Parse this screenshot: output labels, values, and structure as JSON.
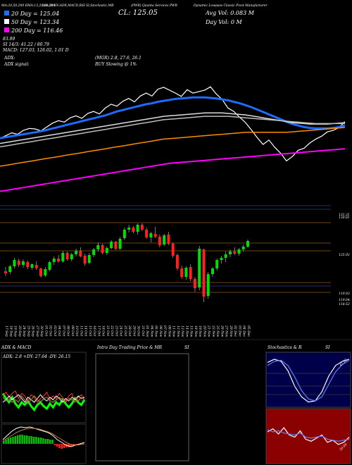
{
  "header": {
    "ma_title": "MA:20,50,200  EMA:13,20,50,200",
    "ind_title": "MA:20 HV:ADX,MACD,RSI",
    "stoch_title": "SI,Stochastic,MR",
    "symbol_title": "(PWR) Quanta Services PWR",
    "company_title": "Dynamic Lowpass Classic Pivot Manufacturer",
    "close_label": "CL: 125.05",
    "avg_vol_label": "Avg Vol: 0.083 M",
    "day_vol_label": "Day Vol: 0   M",
    "ma20_label": "20  Day = 125.04",
    "ma50_label": "50  Day = 123.34",
    "ma200_label": "200  Day = 116.46",
    "stat_lines": [
      "                     83.99",
      "                     SI 14/3: 41.22 / 80.79",
      "MACD: 127.03,  126.02,  1.01 D"
    ],
    "adx_label": "ADX:",
    "adx_mid": "(MGR) 2.8,  27.6,  26.1",
    "adx_signal_label": "ADX signal:",
    "adx_signal_value": "BUY Slowing @ 1%"
  },
  "panels": {
    "adx_macd_title": "ADX  & MACD",
    "adx_values": "ADX: 2.8  +DY: 27.64  -DY: 26.15",
    "intraday_title": "Intra  Day Trading Price  & MR",
    "intraday_si": "SI",
    "stoch_title": "Stochastics & R",
    "stoch_si": "SI",
    "stoch_values": "41.22",
    "mr_value": "20.00"
  },
  "chart_data": [
    {
      "type": "line",
      "name": "moving-averages",
      "x_days": 60,
      "series": [
        {
          "key": "price",
          "color": "#ffffff",
          "values": [
            127.3,
            127.8,
            128.4,
            128.1,
            128.9,
            129.3,
            129.2,
            128.8,
            129.6,
            130.4,
            130.9,
            130.6,
            131.5,
            131.9,
            131.4,
            132.4,
            132.8,
            132.3,
            133.5,
            134.3,
            133.9,
            134.9,
            135.5,
            134.8,
            136.0,
            136.6,
            136.0,
            137.4,
            137.8,
            137.2,
            136.6,
            135.9,
            137.3,
            136.6,
            136.9,
            137.2,
            137.9,
            136.4,
            135.3,
            133.5,
            132.8,
            131.6,
            130.5,
            129.0,
            127.4,
            126.0,
            126.9,
            125.4,
            124.2,
            122.6,
            123.5,
            124.8,
            125.2,
            126.3,
            127.1,
            127.7,
            128.6,
            128.9,
            129.5,
            130.7
          ]
        },
        {
          "key": "ema20",
          "color": "#1e6bff",
          "values": [
            127.3,
            127.5,
            127.7,
            127.9,
            128.1,
            128.3,
            128.5,
            128.7,
            129.0,
            129.3,
            129.6,
            129.9,
            130.2,
            130.5,
            130.8,
            131.1,
            131.4,
            131.7,
            132.0,
            132.4,
            132.8,
            133.1,
            133.4,
            133.7,
            134.0,
            134.3,
            134.5,
            134.8,
            135.0,
            135.2,
            135.4,
            135.5,
            135.6,
            135.7,
            135.7,
            135.7,
            135.6,
            135.5,
            135.3,
            135.1,
            134.8,
            134.5,
            134.1,
            133.7,
            133.2,
            132.7,
            132.2,
            131.7,
            131.2,
            130.7,
            130.2,
            129.9,
            129.6,
            129.4,
            129.3,
            129.3,
            129.3,
            129.4,
            129.6,
            129.9
          ]
        },
        {
          "key": "ema50",
          "color": "#dcdcdc",
          "values": [
            126.2,
            126.4,
            126.6,
            126.8,
            127.0,
            127.2,
            127.4,
            127.6,
            127.8,
            128.0,
            128.2,
            128.4,
            128.6,
            128.8,
            129.0,
            129.2,
            129.4,
            129.6,
            129.8,
            130.0,
            130.2,
            130.4,
            130.6,
            130.8,
            131.0,
            131.2,
            131.4,
            131.6,
            131.8,
            131.9,
            132.0,
            132.1,
            132.2,
            132.3,
            132.4,
            132.5,
            132.5,
            132.5,
            132.5,
            132.4,
            132.3,
            132.2,
            132.1,
            131.9,
            131.7,
            131.5,
            131.3,
            131.1,
            130.9,
            130.7,
            130.5,
            130.4,
            130.3,
            130.2,
            130.2,
            130.2,
            130.2,
            130.3,
            130.4,
            130.5
          ]
        },
        {
          "key": "ema50b",
          "color": "#bbbbbb",
          "values": [
            125.5,
            125.7,
            125.9,
            126.1,
            126.3,
            126.5,
            126.7,
            126.9,
            127.1,
            127.3,
            127.5,
            127.7,
            127.9,
            128.1,
            128.3,
            128.5,
            128.7,
            128.9,
            129.1,
            129.3,
            129.5,
            129.7,
            129.9,
            130.1,
            130.3,
            130.5,
            130.7,
            130.9,
            131.1,
            131.2,
            131.3,
            131.4,
            131.5,
            131.6,
            131.7,
            131.8,
            131.8,
            131.8,
            131.8,
            131.8,
            131.7,
            131.6,
            131.5,
            131.4,
            131.3,
            131.2,
            131.1,
            131.0,
            130.9,
            130.8,
            130.7,
            130.6,
            130.5,
            130.4,
            130.3,
            130.3,
            130.3,
            130.3,
            130.3,
            130.3
          ]
        },
        {
          "key": "ema200",
          "color": "#ff8c00",
          "values": [
            121.5,
            121.7,
            121.9,
            122.1,
            122.3,
            122.5,
            122.7,
            122.9,
            123.1,
            123.3,
            123.5,
            123.7,
            123.9,
            124.1,
            124.3,
            124.5,
            124.7,
            124.9,
            125.1,
            125.3,
            125.5,
            125.7,
            125.9,
            126.1,
            126.3,
            126.5,
            126.7,
            126.9,
            127.1,
            127.2,
            127.3,
            127.4,
            127.5,
            127.6,
            127.7,
            127.8,
            127.9,
            128.0,
            128.1,
            128.2,
            128.3,
            128.4,
            128.5,
            128.5,
            128.5,
            128.5,
            128.5,
            128.5,
            128.5,
            128.5,
            128.6,
            128.7,
            128.8,
            128.9,
            129.0,
            129.1,
            129.2,
            129.3,
            129.4,
            129.5
          ]
        },
        {
          "key": "ma200",
          "color": "#ff00ff",
          "values": [
            116.3,
            116.5,
            116.7,
            116.9,
            117.1,
            117.3,
            117.5,
            117.7,
            117.9,
            118.1,
            118.3,
            118.5,
            118.7,
            118.9,
            119.1,
            119.3,
            119.5,
            119.7,
            119.9,
            120.1,
            120.3,
            120.5,
            120.7,
            120.9,
            121.1,
            121.3,
            121.5,
            121.7,
            121.9,
            122.1,
            122.2,
            122.3,
            122.4,
            122.5,
            122.6,
            122.7,
            122.8,
            122.9,
            123.0,
            123.1,
            123.2,
            123.3,
            123.4,
            123.5,
            123.6,
            123.7,
            123.8,
            123.9,
            124.0,
            124.1,
            124.2,
            124.3,
            124.4,
            124.5,
            124.6,
            124.7,
            124.8,
            124.9,
            125.0,
            125.1
          ]
        }
      ],
      "ylim": [
        110,
        142
      ]
    },
    {
      "type": "bar",
      "name": "candles",
      "categories": [
        "17 Sep",
        "18 Sep",
        "19 Sep",
        "20 Sep",
        "24 Sep",
        "25 Sep",
        "26 Sep",
        "27 Sep",
        "30 Sep",
        "01 Oct",
        "02 Oct",
        "03 Oct",
        "04 Oct",
        "07 Oct",
        "08 Oct",
        "09 Oct",
        "10 Oct",
        "11 Oct",
        "14 Oct",
        "15 Oct",
        "16 Oct",
        "17 Oct",
        "18 Oct",
        "21 Oct",
        "22 Oct",
        "23 Oct",
        "24 Oct",
        "25 Oct",
        "28 Oct",
        "29 Oct",
        "30 Oct",
        "31 Oct",
        "01 Nov",
        "04 Nov",
        "05 Nov",
        "06 Nov",
        "07 Nov",
        "08 Nov",
        "11 Nov",
        "12 Nov",
        "13 Nov",
        "14 Nov",
        "15 Nov",
        "18 Nov",
        "19 Nov",
        "20 Nov",
        "21 Nov",
        "22 Nov",
        "25 Nov",
        "26 Nov",
        "27 Nov",
        "29 Nov",
        "02 Dec",
        "03 Dec",
        "04 Dec",
        "05 Dec"
      ],
      "ohlc": [
        [
          122.0,
          122.6,
          121.3,
          121.7
        ],
        [
          121.9,
          122.9,
          121.6,
          122.7
        ],
        [
          122.7,
          123.9,
          122.4,
          123.6
        ],
        [
          123.5,
          123.8,
          122.6,
          122.9
        ],
        [
          122.9,
          123.7,
          122.5,
          123.4
        ],
        [
          123.3,
          123.5,
          122.3,
          122.6
        ],
        [
          122.5,
          123.1,
          122.2,
          123.0
        ],
        [
          122.9,
          123.4,
          122.2,
          122.4
        ],
        [
          122.4,
          122.5,
          121.1,
          121.3
        ],
        [
          121.4,
          122.6,
          121.2,
          122.3
        ],
        [
          122.2,
          123.5,
          122.0,
          123.3
        ],
        [
          123.3,
          124.1,
          122.9,
          123.8
        ],
        [
          123.8,
          124.3,
          123.2,
          123.4
        ],
        [
          123.4,
          124.9,
          123.2,
          124.6
        ],
        [
          124.6,
          124.8,
          123.5,
          123.7
        ],
        [
          123.7,
          124.6,
          123.4,
          124.4
        ],
        [
          124.4,
          125.2,
          124.1,
          124.9
        ],
        [
          124.9,
          125.4,
          124.0,
          124.1
        ],
        [
          124.2,
          124.5,
          122.8,
          123.1
        ],
        [
          123.2,
          124.6,
          123.0,
          124.3
        ],
        [
          124.3,
          125.3,
          124.0,
          125.1
        ],
        [
          125.1,
          126.1,
          124.8,
          125.7
        ],
        [
          125.7,
          125.9,
          124.4,
          124.6
        ],
        [
          124.6,
          125.5,
          124.3,
          125.3
        ],
        [
          125.3,
          126.4,
          125.1,
          126.2
        ],
        [
          126.2,
          126.3,
          125.0,
          125.2
        ],
        [
          125.2,
          126.9,
          125.0,
          126.6
        ],
        [
          126.7,
          128.2,
          126.4,
          127.9
        ],
        [
          127.9,
          128.6,
          127.5,
          128.2
        ],
        [
          128.2,
          128.4,
          127.4,
          127.6
        ],
        [
          127.6,
          128.8,
          127.2,
          128.6
        ],
        [
          128.6,
          128.8,
          127.7,
          127.9
        ],
        [
          127.9,
          128.2,
          126.6,
          126.8
        ],
        [
          126.8,
          127.6,
          126.1,
          127.4
        ],
        [
          127.3,
          128.3,
          126.7,
          126.9
        ],
        [
          126.9,
          127.2,
          125.4,
          125.7
        ],
        [
          125.8,
          127.3,
          125.6,
          127.1
        ],
        [
          127.2,
          127.6,
          125.7,
          125.9
        ],
        [
          125.9,
          126.1,
          123.9,
          124.2
        ],
        [
          124.3,
          124.5,
          122.1,
          122.4
        ],
        [
          122.4,
          122.8,
          120.9,
          121.2
        ],
        [
          121.2,
          122.7,
          120.8,
          122.5
        ],
        [
          122.6,
          123.0,
          120.6,
          120.9
        ],
        [
          120.9,
          121.2,
          119.1,
          119.6
        ],
        [
          119.7,
          125.6,
          119.3,
          125.2
        ],
        [
          125.1,
          125.2,
          117.6,
          118.4
        ],
        [
          118.5,
          121.9,
          118.1,
          121.6
        ],
        [
          121.6,
          122.6,
          121.2,
          122.4
        ],
        [
          122.4,
          123.8,
          122.1,
          123.6
        ],
        [
          123.6,
          124.2,
          123.1,
          123.9
        ],
        [
          123.9,
          124.8,
          123.3,
          124.4
        ],
        [
          124.4,
          125.1,
          124.0,
          124.8
        ],
        [
          124.8,
          125.4,
          124.3,
          124.5
        ],
        [
          124.5,
          125.3,
          124.2,
          125.1
        ],
        [
          125.1,
          125.8,
          124.8,
          125.5
        ],
        [
          125.5,
          126.5,
          125.3,
          126.3
        ]
      ],
      "price_labels": [
        "131.31",
        "130.81",
        "125.92",
        "119.93",
        "119.04",
        "118.52"
      ],
      "ylim": [
        116.5,
        130.5
      ]
    }
  ]
}
